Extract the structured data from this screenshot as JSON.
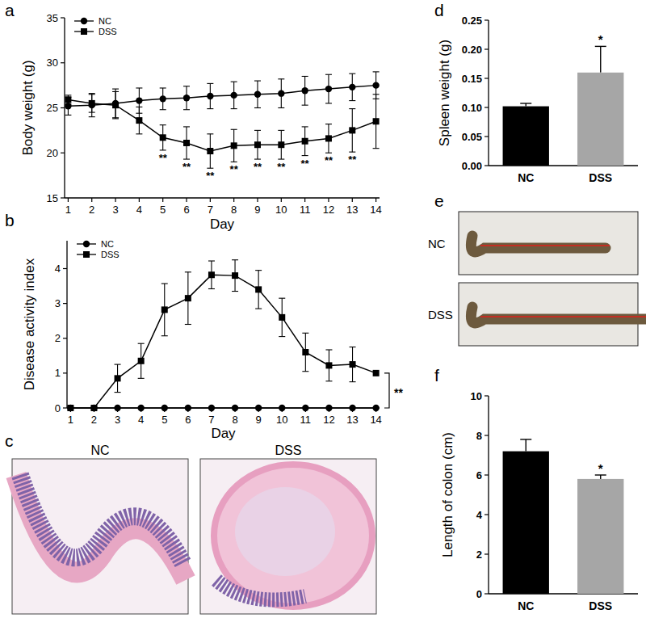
{
  "chart_data": [
    {
      "type": "line",
      "title": "a",
      "x_label": "Day",
      "y_label": "Body weight (g)",
      "x": [
        1,
        2,
        3,
        4,
        5,
        6,
        7,
        8,
        9,
        10,
        11,
        12,
        13,
        14
      ],
      "xlim": [
        0.85,
        14.15
      ],
      "xticks": [
        1,
        2,
        3,
        4,
        5,
        6,
        7,
        8,
        9,
        10,
        11,
        12,
        13,
        14
      ],
      "ylim": [
        15,
        35
      ],
      "yticks": [
        15,
        20,
        25,
        30,
        35
      ],
      "legend": "upper left",
      "series": [
        {
          "name": "NC",
          "color": "#000000",
          "marker": "circle",
          "values": [
            25.2,
            25.3,
            25.5,
            25.8,
            26.0,
            26.1,
            26.3,
            26.4,
            26.5,
            26.6,
            26.9,
            27.1,
            27.3,
            27.5
          ],
          "errors": [
            1.0,
            1.3,
            1.6,
            1.4,
            1.2,
            1.3,
            1.4,
            1.5,
            1.5,
            1.6,
            1.6,
            1.6,
            1.5,
            1.5
          ]
        },
        {
          "name": "DSS",
          "color": "#000000",
          "marker": "square",
          "values": [
            25.9,
            25.5,
            25.3,
            23.6,
            21.7,
            21.1,
            20.2,
            20.8,
            20.9,
            20.9,
            21.3,
            21.6,
            22.5,
            23.5
          ],
          "errors": [
            0.5,
            1.0,
            1.5,
            1.5,
            1.4,
            1.8,
            1.9,
            1.8,
            1.6,
            1.6,
            1.6,
            1.6,
            2.4,
            3.0
          ]
        }
      ],
      "annotations": [
        {
          "x": 5,
          "text": "**"
        },
        {
          "x": 6,
          "text": "**"
        },
        {
          "x": 7,
          "text": "**"
        },
        {
          "x": 8,
          "text": "**"
        },
        {
          "x": 9,
          "text": "**"
        },
        {
          "x": 10,
          "text": "**"
        },
        {
          "x": 11,
          "text": "**"
        },
        {
          "x": 12,
          "text": "**"
        },
        {
          "x": 13,
          "text": "**"
        }
      ]
    },
    {
      "type": "line",
      "title": "b",
      "x_label": "Day",
      "y_label": "Disease activity index",
      "x": [
        1,
        2,
        3,
        4,
        5,
        6,
        7,
        8,
        9,
        10,
        11,
        12,
        13,
        14
      ],
      "xlim": [
        0.85,
        14.15
      ],
      "xticks": [
        1,
        2,
        3,
        4,
        5,
        6,
        7,
        8,
        9,
        10,
        11,
        12,
        13,
        14
      ],
      "ylim": [
        0,
        4.8
      ],
      "yticks": [
        0,
        1,
        2,
        3,
        4
      ],
      "legend": "upper left",
      "series": [
        {
          "name": "NC",
          "color": "#000000",
          "marker": "circle",
          "values": [
            0,
            0,
            0,
            0,
            0,
            0,
            0,
            0,
            0,
            0,
            0,
            0,
            0,
            0
          ],
          "errors": [
            0,
            0,
            0,
            0,
            0,
            0,
            0,
            0,
            0,
            0,
            0,
            0,
            0,
            0
          ]
        },
        {
          "name": "DSS",
          "color": "#000000",
          "marker": "square",
          "values": [
            0,
            0,
            0.85,
            1.35,
            2.82,
            3.15,
            3.82,
            3.8,
            3.4,
            2.6,
            1.6,
            1.22,
            1.25,
            1.0
          ],
          "errors": [
            0,
            0,
            0.4,
            0.5,
            0.75,
            0.75,
            0.4,
            0.45,
            0.55,
            0.55,
            0.55,
            0.45,
            0.5,
            0
          ]
        }
      ],
      "annotations": [
        {
          "text": "**"
        }
      ]
    },
    {
      "type": "bar",
      "title": "d",
      "y_label": "Spleen weight (g)",
      "categories": [
        "NC",
        "DSS"
      ],
      "values": [
        0.102,
        0.16
      ],
      "errors": [
        0.005,
        0.045
      ],
      "colors": [
        "#000000",
        "#a6a6a6"
      ],
      "ylim": [
        0,
        0.25
      ],
      "yticks": [
        {
          "value": 0,
          "label": "0.00"
        },
        {
          "value": 0.05,
          "label": "0.05"
        },
        {
          "value": 0.1,
          "label": "0.10"
        },
        {
          "value": 0.15,
          "label": "0.15"
        },
        {
          "value": 0.2,
          "label": "0.20"
        },
        {
          "value": 0.25,
          "label": "0.25"
        }
      ],
      "annotations": [
        {
          "category": "DSS",
          "text": "*"
        }
      ]
    },
    {
      "type": "bar",
      "title": "f",
      "y_label": "Length of colon (cm)",
      "categories": [
        "NC",
        "DSS"
      ],
      "values": [
        7.2,
        5.8
      ],
      "errors": [
        0.6,
        0.2
      ],
      "colors": [
        "#000000",
        "#a6a6a6"
      ],
      "ylim": [
        0,
        10
      ],
      "yticks": [
        0,
        2,
        4,
        6,
        8,
        10
      ],
      "annotations": [
        {
          "category": "DSS",
          "text": "*"
        }
      ]
    }
  ],
  "image_panels": [
    {
      "title": "c",
      "labels": [
        "NC",
        "DSS"
      ]
    },
    {
      "title": "e",
      "labels": [
        "NC",
        "DSS"
      ]
    }
  ]
}
